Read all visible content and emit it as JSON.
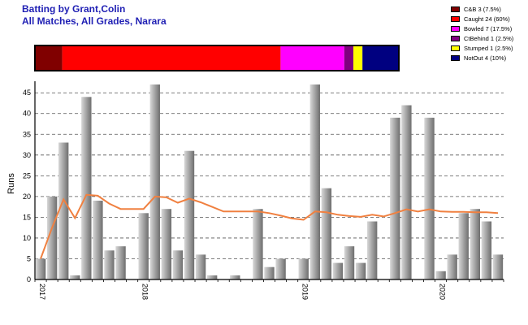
{
  "title": "Batting by Grant,Colin",
  "subtitle": "All Matches, All Grades, Narara",
  "chart_data": {
    "type": "bar",
    "ylabel": "Runs",
    "xlabel": "",
    "ylim": [
      0,
      47
    ],
    "yticks": [
      0,
      5,
      10,
      15,
      20,
      25,
      30,
      35,
      40,
      45
    ],
    "grid": true,
    "x_tick_labels": [
      "2017",
      "2018",
      "2019",
      "2020"
    ],
    "values": [
      5,
      20,
      33,
      1,
      44,
      19,
      7,
      8,
      0,
      16,
      47,
      17,
      7,
      31,
      6,
      1,
      0,
      1,
      0,
      17,
      3,
      5,
      0,
      5,
      47,
      22,
      4,
      8,
      4,
      14,
      0,
      39,
      42,
      0,
      39,
      2,
      6,
      16,
      17,
      14,
      6
    ],
    "running_average": [
      5,
      12.5,
      19.3,
      14.8,
      20.4,
      20.2,
      18.3,
      17,
      17,
      17,
      20,
      19.8,
      18.5,
      19.5,
      18.6,
      17.5,
      16.4,
      16.4,
      16.4,
      16.4,
      16,
      15.4,
      14.7,
      14.4,
      16.4,
      16.2,
      15.6,
      15.3,
      15.1,
      15.6,
      15.2,
      16,
      16.9,
      16.4,
      16.9,
      16.4,
      16.3,
      16.3,
      16.2,
      16.2,
      16
    ],
    "line_color": "#f08040",
    "bar_color": "#a0a0a0",
    "legend_position": "top-right",
    "dismissal_breakdown": [
      {
        "label": "C&B 3 (7.5%)",
        "value": 3,
        "color": "#800000"
      },
      {
        "label": "Caught 24 (60%)",
        "value": 24,
        "color": "#ff0000"
      },
      {
        "label": "Bowled 7 (17.5%)",
        "value": 7,
        "color": "#ff00ff"
      },
      {
        "label": "CtBehind 1 (2.5%)",
        "value": 1,
        "color": "#800080"
      },
      {
        "label": "Stumped 1 (2.5%)",
        "value": 1,
        "color": "#ffff00"
      },
      {
        "label": "NotOut 4 (10%)",
        "value": 4,
        "color": "#000080"
      }
    ]
  }
}
